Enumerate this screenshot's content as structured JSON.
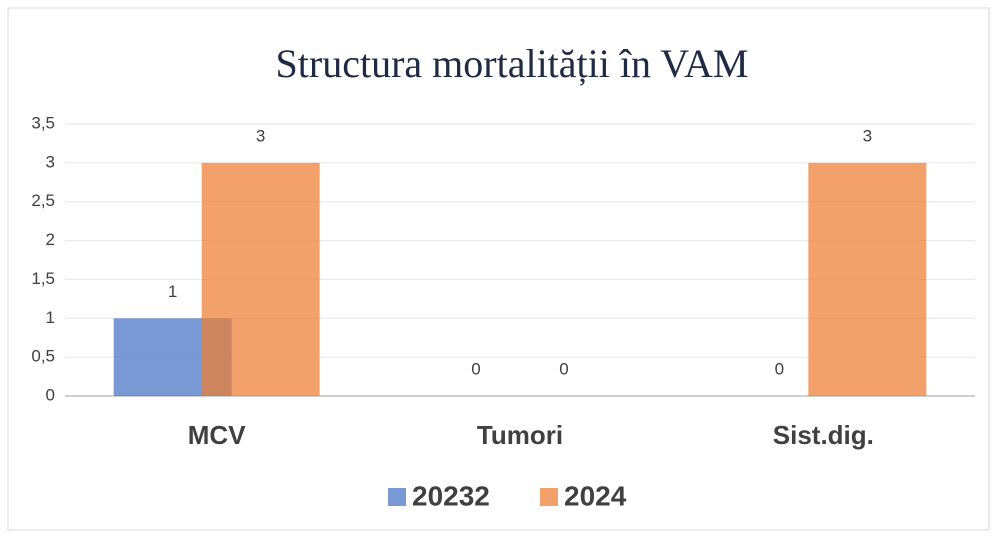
{
  "chart_data": {
    "type": "bar",
    "title": "Structura mortalității în VAM",
    "categories": [
      "MCV",
      "Tumori",
      "Sist.dig."
    ],
    "series": [
      {
        "name": "20232",
        "color": "#4472c4",
        "values": [
          1,
          0,
          0
        ]
      },
      {
        "name": "2024",
        "color": "#ed7d31",
        "values": [
          3,
          0,
          3
        ]
      }
    ],
    "ylim": [
      0,
      3.5
    ],
    "yticks": [
      0,
      {
        "value": 0.5,
        "label": "0,5"
      },
      1,
      {
        "value": 1.5,
        "label": "1,5"
      },
      2,
      {
        "value": 2.5,
        "label": "2,5"
      },
      3,
      {
        "value": 3.5,
        "label": "3,5"
      }
    ],
    "grid": true,
    "legend": "bottom"
  }
}
